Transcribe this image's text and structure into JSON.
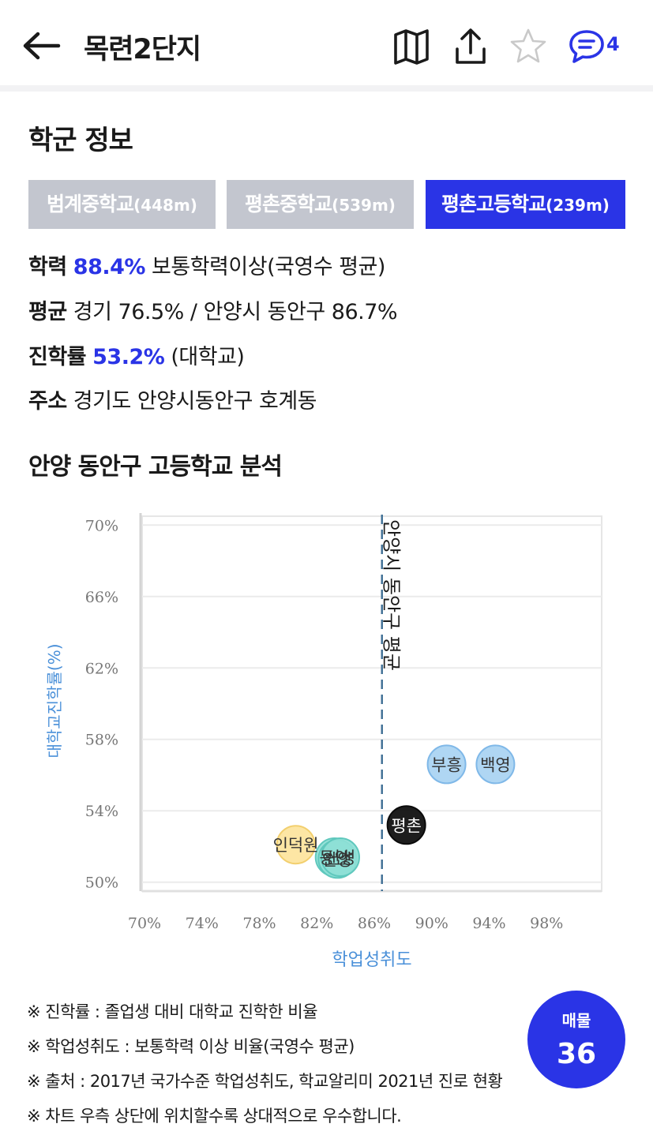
{
  "header": {
    "title": "목련2단지",
    "comment_count": "4",
    "icons": [
      "back-arrow-icon",
      "map-icon",
      "share-icon",
      "star-icon",
      "comment-icon"
    ]
  },
  "school_info": {
    "title": "학군 정보",
    "tabs": [
      {
        "name": "범계중학교",
        "distance": "(448m)",
        "active": false
      },
      {
        "name": "평촌중학교",
        "distance": "(539m)",
        "active": false
      },
      {
        "name": "평촌고등학교",
        "distance": "(239m)",
        "active": true
      }
    ],
    "achievement": {
      "label": "학력",
      "value": "88.4%",
      "desc": " 보통학력이상(국영수 평균)"
    },
    "average": {
      "label": "평균",
      "desc": " 경기 76.5% / 안양시 동안구 86.7%"
    },
    "admission_rate": {
      "label": "진학률",
      "value": "53.2%",
      "desc": " (대학교)"
    },
    "address": {
      "label": "주소",
      "desc": " 경기도 안양시동안구 호계동"
    }
  },
  "analysis": {
    "title": "안양 동안구 고등학교 분석"
  },
  "chart_data": {
    "type": "scatter",
    "xlabel": "학업성취도",
    "ylabel": "대학교진학률(%)",
    "xlim": [
      70,
      102
    ],
    "ylim": [
      49.5,
      70.5
    ],
    "x_ticks": [
      "70%",
      "74%",
      "78%",
      "82%",
      "86%",
      "90%",
      "94%",
      "98%"
    ],
    "x_tick_values": [
      70,
      74,
      78,
      82,
      86,
      90,
      94,
      98
    ],
    "y_ticks": [
      "70%",
      "66%",
      "62%",
      "58%",
      "54%",
      "50%"
    ],
    "y_tick_values": [
      70,
      66,
      62,
      58,
      54,
      50
    ],
    "grid": true,
    "reference_line": {
      "x": 86.7,
      "label": "안양시 동안구 평균"
    },
    "points": [
      {
        "name": "부흥",
        "x": 91.2,
        "y": 56.6,
        "color": "#a8d3f2",
        "stroke": "#7fb8e8",
        "text_color": "#333333"
      },
      {
        "name": "백영",
        "x": 94.6,
        "y": 56.6,
        "color": "#a8d3f2",
        "stroke": "#7fb8e8",
        "text_color": "#333333"
      },
      {
        "name": "평촌",
        "x": 88.4,
        "y": 53.2,
        "color": "#0a0a0a",
        "stroke": "#0a0a0a",
        "text_color": "#ffffff"
      },
      {
        "name": "인덕원",
        "x": 80.7,
        "y": 52.1,
        "color": "#fde49c",
        "stroke": "#f2cf6e",
        "text_color": "#333333"
      },
      {
        "name": "동안",
        "x": 83.4,
        "y": 51.4,
        "color": "#8ee0d6",
        "stroke": "#5fc8bd",
        "text_color": "#333333"
      },
      {
        "name": "안양",
        "x": 83.6,
        "y": 51.3,
        "color": "#8ee0d6",
        "stroke": "#5fc8bd",
        "text_color": "#333333"
      },
      {
        "name": "신성",
        "x": 83.8,
        "y": 51.4,
        "color": "#8ee0d6",
        "stroke": "#5fc8bd",
        "text_color": "#333333"
      }
    ]
  },
  "notes": [
    "※ 진학률 : 졸업생 대비 대학교 진학한 비율",
    "※ 학업성취도 : 보통학력 이상 비율(국영수 평균)",
    "※ 출처 : 2017년 국가수준 학업성취도, 학교알리미 2021년 진로 현황",
    "※ 차트 우측 상단에 위치할수록 상대적으로 우수합니다."
  ],
  "fab": {
    "label": "매물",
    "count": "36"
  },
  "colors": {
    "accent": "#2a34e6",
    "tab_inactive": "#c3c6cf",
    "axis_label": "#4a90d9"
  }
}
